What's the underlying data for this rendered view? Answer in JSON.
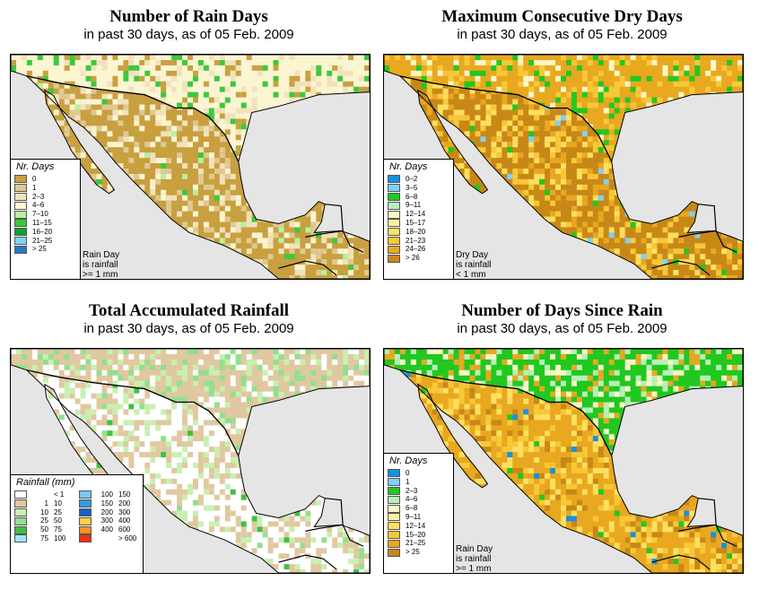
{
  "panels": [
    {
      "title": "Number of Rain Days",
      "subtitle": "in past 30 days, as of  05 Feb. 2009",
      "legend_title": "Nr. Days",
      "legend": [
        {
          "label": "0",
          "color": "#c8a040"
        },
        {
          "label": "1",
          "color": "#e0c890"
        },
        {
          "label": "2–3",
          "color": "#f2e2bc"
        },
        {
          "label": "4–6",
          "color": "#fbf5d2"
        },
        {
          "label": "7–10",
          "color": "#b8f0a0"
        },
        {
          "label": "11–15",
          "color": "#3cc83c"
        },
        {
          "label": "16–20",
          "color": "#10a030"
        },
        {
          "label": "21–25",
          "color": "#80d8f0"
        },
        {
          "label": "> 25",
          "color": "#2878c8"
        }
      ],
      "note": [
        "Rain Day",
        "is rainfall",
        ">= 1 mm"
      ]
    },
    {
      "title": "Maximum Consecutive Dry Days",
      "subtitle": "in past 30 days, as of  05 Feb. 2009",
      "legend_title": "Nr. Days",
      "legend": [
        {
          "label": "0–2",
          "color": "#1890e0"
        },
        {
          "label": "3–5",
          "color": "#80d0f8"
        },
        {
          "label": "6–8",
          "color": "#20c820"
        },
        {
          "label": "9–11",
          "color": "#b8f0b8"
        },
        {
          "label": "12–14",
          "color": "#fbf7c8"
        },
        {
          "label": "15–17",
          "color": "#fff0a0"
        },
        {
          "label": "18–20",
          "color": "#ffe060"
        },
        {
          "label": "21–23",
          "color": "#f8c838"
        },
        {
          "label": "24–26",
          "color": "#e8a820"
        },
        {
          "label": "> 26",
          "color": "#c88818"
        }
      ],
      "note": [
        "Dry Day",
        "is rainfall",
        "< 1 mm"
      ]
    },
    {
      "title": "Total Accumulated Rainfall",
      "subtitle": "in past 30 days, as of  05 Feb. 2009",
      "legend_title": "Rainfall (mm)",
      "legend_left": [
        {
          "low": "",
          "high": "< 1",
          "color": "#ffffff"
        },
        {
          "low": "1",
          "high": "10",
          "color": "#e0c8a0"
        },
        {
          "low": "10",
          "high": "25",
          "color": "#c8f0b0"
        },
        {
          "low": "25",
          "high": "50",
          "color": "#90e090"
        },
        {
          "low": "50",
          "high": "75",
          "color": "#40c040"
        },
        {
          "low": "75",
          "high": "100",
          "color": "#a0e8f8"
        }
      ],
      "legend_right": [
        {
          "low": "100",
          "high": "150",
          "color": "#78c8f0"
        },
        {
          "low": "150",
          "high": "200",
          "color": "#3898e0"
        },
        {
          "low": "200",
          "high": "300",
          "color": "#1860c0"
        },
        {
          "low": "300",
          "high": "400",
          "color": "#ffd040"
        },
        {
          "low": "400",
          "high": "600",
          "color": "#ff9020"
        },
        {
          "low": "",
          "high": "> 600",
          "color": "#f03010"
        }
      ]
    },
    {
      "title": "Number of Days Since Rain",
      "subtitle": "in past 30 days, as of  05 Feb. 2009",
      "legend_title": "Nr. Days",
      "legend": [
        {
          "label": "0",
          "color": "#1890e0"
        },
        {
          "label": "1",
          "color": "#80d0f8"
        },
        {
          "label": "2–3",
          "color": "#20c820"
        },
        {
          "label": "4–6",
          "color": "#b8f0b8"
        },
        {
          "label": "6–8",
          "color": "#fbf7c8"
        },
        {
          "label": "9–11",
          "color": "#fff0a0"
        },
        {
          "label": "12–14",
          "color": "#ffe060"
        },
        {
          "label": "15–20",
          "color": "#f8c838"
        },
        {
          "label": "21–25",
          "color": "#e8a820"
        },
        {
          "label": "> 25",
          "color": "#c88818"
        }
      ],
      "note": [
        "Rain Day",
        "is rainfall",
        ">= 1 mm"
      ]
    }
  ],
  "colors": {
    "sea": "#e5e5e5",
    "border": "#000000"
  }
}
